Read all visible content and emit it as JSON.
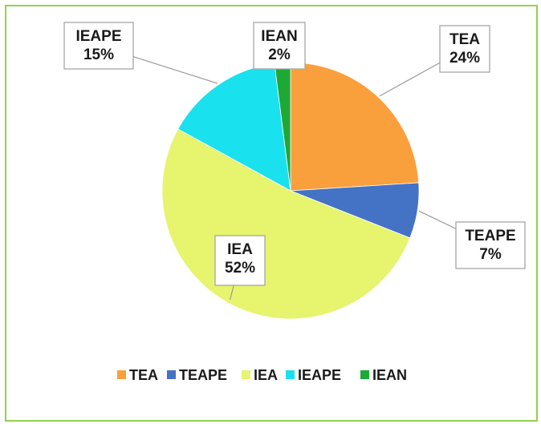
{
  "chart_data": {
    "type": "pie",
    "categories": [
      "TEA",
      "TEAPE",
      "IEA",
      "IEAPE",
      "IEAN"
    ],
    "values": [
      24,
      7,
      52,
      15,
      2
    ],
    "labels": [
      "24%",
      "7%",
      "52%",
      "15%",
      "2%"
    ],
    "colors": [
      "#f9a03c",
      "#4472c4",
      "#e6f46e",
      "#19e1ee",
      "#1ea836"
    ],
    "legend_position": "bottom",
    "title": ""
  }
}
